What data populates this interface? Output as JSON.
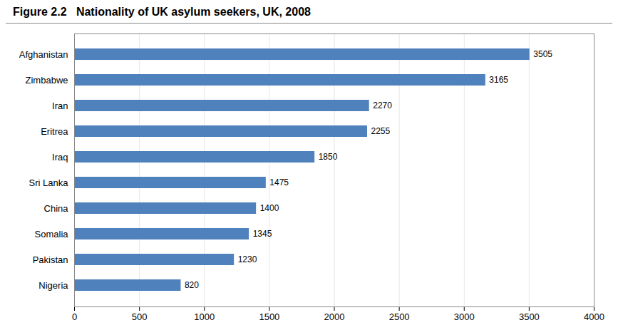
{
  "chart_data": {
    "type": "bar",
    "orientation": "horizontal",
    "title": "Figure 2.2   Nationality of UK asylum seekers, UK, 2008",
    "categories": [
      "Afghanistan",
      "Zimbabwe",
      "Iran",
      "Eritrea",
      "Iraq",
      "Sri Lanka",
      "China",
      "Somalia",
      "Pakistan",
      "Nigeria"
    ],
    "values": [
      3505,
      3165,
      2270,
      2255,
      1850,
      1475,
      1400,
      1345,
      1230,
      820
    ],
    "color": "#4f81bd",
    "xlim": [
      0,
      4000
    ],
    "xticks": [
      0,
      500,
      1000,
      1500,
      2000,
      2500,
      3000,
      3500,
      4000
    ],
    "grid": true,
    "data_labels": true
  }
}
